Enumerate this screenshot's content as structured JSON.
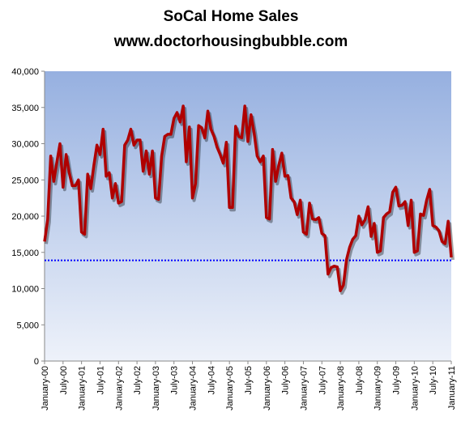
{
  "chart_data": {
    "type": "line",
    "title": "SoCal Home Sales",
    "subtitle": "www.doctorhousingbubble.com",
    "categories": [
      "January-00",
      null,
      null,
      null,
      null,
      null,
      "July-00",
      null,
      null,
      null,
      null,
      null,
      "January-01",
      null,
      null,
      null,
      null,
      null,
      "July-01",
      null,
      null,
      null,
      null,
      null,
      "January-02",
      null,
      null,
      null,
      null,
      null,
      "July-02",
      null,
      null,
      null,
      null,
      null,
      "January-03",
      null,
      null,
      null,
      null,
      null,
      "July-03",
      null,
      null,
      null,
      null,
      null,
      "January-04",
      null,
      null,
      null,
      null,
      null,
      "July-04",
      null,
      null,
      null,
      null,
      null,
      "January-05",
      null,
      null,
      null,
      null,
      null,
      "July-05",
      null,
      null,
      null,
      null,
      null,
      "January-06",
      null,
      null,
      null,
      null,
      null,
      "July-06",
      null,
      null,
      null,
      null,
      null,
      "January-07",
      null,
      null,
      null,
      null,
      null,
      "July-07",
      null,
      null,
      null,
      null,
      null,
      "January-08",
      null,
      null,
      null,
      null,
      null,
      "July-08",
      null,
      null,
      null,
      null,
      null,
      "January-09",
      null,
      null,
      null,
      null,
      null,
      "July-09",
      null,
      null,
      null,
      null,
      null,
      "January-10",
      null,
      null,
      null,
      null,
      null,
      "July-10",
      null,
      null,
      null,
      null,
      null,
      "January-11"
    ],
    "series": [
      {
        "name": "Home Sales",
        "color": "#b00000",
        "values": [
          16500,
          19500,
          28300,
          24800,
          27500,
          30000,
          24000,
          28500,
          26000,
          24200,
          24200,
          25000,
          17800,
          17500,
          25800,
          23800,
          27000,
          29800,
          28500,
          32000,
          25500,
          26000,
          22500,
          24500,
          21800,
          22000,
          29800,
          30500,
          32000,
          29800,
          30500,
          30500,
          26200,
          29000,
          25800,
          29000,
          22500,
          22300,
          28300,
          31000,
          31300,
          31300,
          33500,
          34300,
          33000,
          35200,
          27500,
          32300,
          22500,
          24500,
          32500,
          32200,
          30800,
          34500,
          32000,
          31000,
          29500,
          28500,
          27300,
          30200,
          21200,
          21200,
          32400,
          31000,
          30800,
          35200,
          30300,
          34000,
          31500,
          28300,
          27500,
          28300,
          19800,
          19600,
          29200,
          24800,
          27000,
          28700,
          25500,
          25600,
          22500,
          22000,
          20200,
          22200,
          17800,
          17500,
          21800,
          19600,
          19500,
          19800,
          17600,
          17300,
          12000,
          12900,
          13100,
          13000,
          9700,
          10500,
          14000,
          15700,
          16800,
          17300,
          20000,
          18800,
          19500,
          21300,
          17200,
          19000,
          15000,
          15200,
          19800,
          20300,
          20600,
          23300,
          24000,
          21400,
          21500,
          22000,
          18700,
          22200,
          15000,
          15200,
          20300,
          20100,
          22200,
          23700,
          18700,
          18500,
          18000,
          16500,
          16200,
          19300,
          14300
        ]
      }
    ],
    "reference_line": {
      "value": 13900,
      "color": "#0000ff"
    },
    "ylim": [
      0,
      40000
    ],
    "yticks": [
      0,
      {
        "value": 5000,
        "label": "5,000"
      },
      {
        "value": 10000,
        "label": "10,000"
      },
      {
        "value": 15000,
        "label": "15,000"
      },
      {
        "value": 20000,
        "label": "20,000"
      },
      {
        "value": 25000,
        "label": "25,000"
      },
      {
        "value": 30000,
        "label": "30,000"
      },
      {
        "value": 35000,
        "label": "35,000"
      },
      {
        "value": 40000,
        "label": "40,000"
      }
    ]
  }
}
